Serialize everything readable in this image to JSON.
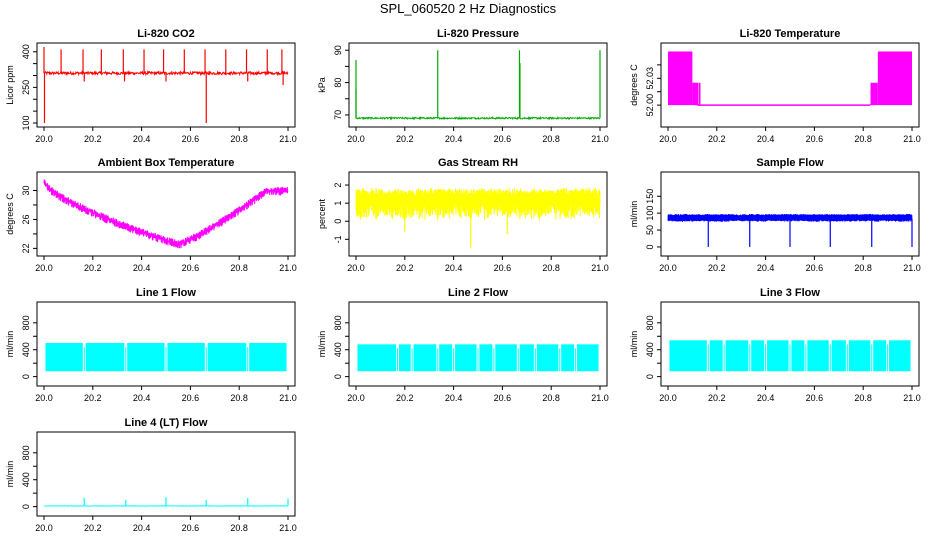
{
  "title": "SPL_060520  2 Hz Diagnostics",
  "chart_data": [
    {
      "type": "line",
      "title": "Li-820 CO2",
      "ylabel": "Licor ppm",
      "color": "#ff0000",
      "xlim": [
        0,
        1
      ],
      "ylim": [
        100,
        420
      ],
      "xticks": [
        0,
        0.2,
        0.4,
        0.6,
        0.8,
        1
      ],
      "xticklabels": [
        "20.0",
        "20.2",
        "20.4",
        "20.6",
        "20.8",
        "21.0"
      ],
      "yticks": [
        100,
        250,
        400
      ],
      "yticklabels": [
        "100",
        "250",
        "400"
      ],
      "yminor": [
        150,
        200,
        300,
        350
      ],
      "baseline": [
        0.0,
        3.0
      ],
      "noise": 6,
      "band": 0,
      "gen": "flat",
      "params": [
        0,
        0,
        0,
        0
      ],
      "spikes": [
        {
          "x": 0.0,
          "y": 420
        },
        {
          "x": 0.002,
          "y": 100
        },
        {
          "x": 0.07,
          "y": 410
        },
        {
          "x": 0.16,
          "y": 410
        },
        {
          "x": 0.235,
          "y": 410
        },
        {
          "x": 0.325,
          "y": 410
        },
        {
          "x": 0.41,
          "y": 410
        },
        {
          "x": 0.49,
          "y": 410
        },
        {
          "x": 0.575,
          "y": 410
        },
        {
          "x": 0.66,
          "y": 410
        },
        {
          "x": 0.665,
          "y": 100
        },
        {
          "x": 0.745,
          "y": 410
        },
        {
          "x": 0.83,
          "y": 410
        },
        {
          "x": 0.915,
          "y": 410
        },
        {
          "x": 0.975,
          "y": 410
        },
        {
          "x": 0.98,
          "y": 260
        },
        {
          "x": 0.33,
          "y": 275
        },
        {
          "x": 0.165,
          "y": 275
        },
        {
          "x": 0.5,
          "y": 275
        },
        {
          "x": 0.835,
          "y": 275
        }
      ],
      "level": 310
    },
    {
      "type": "line",
      "title": "Li-820 Pressure",
      "ylabel": "kPa",
      "color": "#00aa00",
      "xlim": [
        0,
        1
      ],
      "ylim": [
        67.5,
        91
      ],
      "xticks": [
        0,
        0.2,
        0.4,
        0.6,
        0.8,
        1
      ],
      "xticklabels": [
        "20.0",
        "20.2",
        "20.4",
        "20.6",
        "20.8",
        "21.0"
      ],
      "yticks": [
        70,
        80,
        90
      ],
      "yticklabels": [
        "70",
        "80",
        "90"
      ],
      "yminor": [
        75,
        85
      ],
      "level": 69.0,
      "noise": 0.25,
      "band": 0,
      "gen": "flat",
      "spikes": [
        {
          "x": 0.0,
          "y": 87
        },
        {
          "x": 0.0,
          "y": 78
        },
        {
          "x": 0.335,
          "y": 90
        },
        {
          "x": 0.67,
          "y": 90
        },
        {
          "x": 0.672,
          "y": 86
        },
        {
          "x": 1.0,
          "y": 90
        }
      ]
    },
    {
      "type": "area",
      "title": "Li-820 Temperature",
      "ylabel": "degrees C",
      "color": "#ff00ff",
      "xlim": [
        0,
        1
      ],
      "ylim": [
        51.98,
        52.065
      ],
      "xticks": [
        0,
        0.2,
        0.4,
        0.6,
        0.8,
        1
      ],
      "xticklabels": [
        "20.0",
        "20.2",
        "20.4",
        "20.6",
        "20.8",
        "21.0"
      ],
      "yticks": [
        52.0,
        52.03
      ],
      "yticklabels": [
        "52.00",
        "52.03"
      ],
      "yminor": [
        52.015,
        52.045
      ],
      "level": 52.0,
      "gen": "temp",
      "blocks": [
        {
          "x0": 0,
          "x1": 0.1,
          "y0": 52.0,
          "y1": 52.06
        },
        {
          "x0": 0.1,
          "x1": 0.125,
          "y0": 52.0,
          "y1": 52.025
        },
        {
          "x0": 0.83,
          "x1": 0.86,
          "y0": 52.0,
          "y1": 52.025
        },
        {
          "x0": 0.86,
          "x1": 1.0,
          "y0": 52.0,
          "y1": 52.06
        }
      ]
    },
    {
      "type": "line",
      "title": "Ambient Box Temperature",
      "ylabel": "degrees C",
      "color": "#ff00ff",
      "xlim": [
        0,
        1
      ],
      "ylim": [
        21.5,
        32
      ],
      "xticks": [
        0,
        0.2,
        0.4,
        0.6,
        0.8,
        1
      ],
      "xticklabels": [
        "20.0",
        "20.2",
        "20.4",
        "20.6",
        "20.8",
        "21.0"
      ],
      "yticks": [
        22,
        26,
        30
      ],
      "yticklabels": [
        "22",
        "26",
        "30"
      ],
      "yminor": [
        24,
        28
      ],
      "gen": "vshape",
      "band": 1.0
    },
    {
      "type": "line",
      "title": "Gas Stream RH",
      "ylabel": "percent",
      "color": "#ffff00",
      "xlim": [
        0,
        1
      ],
      "ylim": [
        -1.7,
        2.5
      ],
      "xticks": [
        0,
        0.2,
        0.4,
        0.6,
        0.8,
        1
      ],
      "xticklabels": [
        "20.0",
        "20.2",
        "20.4",
        "20.6",
        "20.8",
        "21.0"
      ],
      "yticks": [
        -1,
        0,
        1,
        2
      ],
      "yticklabels": [
        "-1",
        "0",
        "1",
        "2"
      ],
      "gen": "band",
      "params": [
        1.05,
        1.2,
        0.9,
        1.5
      ],
      "dips": [
        {
          "x": 0.47,
          "y": -1.5
        },
        {
          "x": 0.2,
          "y": -0.6
        },
        {
          "x": 0.62,
          "y": -0.7
        }
      ]
    },
    {
      "type": "line",
      "title": "Sample Flow",
      "ylabel": "ml/min",
      "color": "#0000ff",
      "xlim": [
        0,
        1
      ],
      "ylim": [
        -15,
        210
      ],
      "xticks": [
        0,
        0.2,
        0.4,
        0.6,
        0.8,
        1
      ],
      "xticklabels": [
        "20.0",
        "20.2",
        "20.4",
        "20.6",
        "20.8",
        "21.0"
      ],
      "yticks": [
        0,
        50,
        100,
        150
      ],
      "yticklabels": [
        "0",
        "50",
        "100",
        "150"
      ],
      "gen": "band",
      "params": [
        83,
        88,
        78,
        95
      ],
      "dips": [
        {
          "x": 0.165,
          "y": 0
        },
        {
          "x": 0.335,
          "y": 0
        },
        {
          "x": 0.5,
          "y": 0
        },
        {
          "x": 0.665,
          "y": 0
        },
        {
          "x": 0.835,
          "y": 0
        },
        {
          "x": 1.0,
          "y": 0
        }
      ]
    },
    {
      "type": "area",
      "title": "Line 1 Flow",
      "ylabel": "ml/min",
      "color": "#00ffff",
      "xlim": [
        0,
        1
      ],
      "ylim": [
        -80,
        1050
      ],
      "xticks": [
        0,
        0.2,
        0.4,
        0.6,
        0.8,
        1
      ],
      "xticklabels": [
        "20.0",
        "20.2",
        "20.4",
        "20.6",
        "20.8",
        "21.0"
      ],
      "yticks": [
        0,
        400,
        800
      ],
      "yticklabels": [
        "0",
        "400",
        "800"
      ],
      "yminor": [
        200,
        600
      ],
      "gen": "flow",
      "low": 80,
      "high": 500,
      "gaps": [
        0.165,
        0.335,
        0.5,
        0.665,
        0.835
      ]
    },
    {
      "type": "area",
      "title": "Line 2 Flow",
      "ylabel": "ml/min",
      "color": "#00ffff",
      "xlim": [
        0,
        1
      ],
      "ylim": [
        -80,
        1050
      ],
      "xticks": [
        0,
        0.2,
        0.4,
        0.6,
        0.8,
        1
      ],
      "xticklabels": [
        "20.0",
        "20.2",
        "20.4",
        "20.6",
        "20.8",
        "21.0"
      ],
      "yticks": [
        0,
        400,
        800
      ],
      "yticklabels": [
        "0",
        "400",
        "800"
      ],
      "yminor": [
        200,
        600
      ],
      "gen": "flow",
      "low": 80,
      "high": 480,
      "gaps": [
        0.17,
        0.23,
        0.335,
        0.4,
        0.5,
        0.565,
        0.665,
        0.735,
        0.835,
        0.9
      ]
    },
    {
      "type": "area",
      "title": "Line 3 Flow",
      "ylabel": "ml/min",
      "color": "#00ffff",
      "xlim": [
        0,
        1
      ],
      "ylim": [
        -80,
        1050
      ],
      "xticks": [
        0,
        0.2,
        0.4,
        0.6,
        0.8,
        1
      ],
      "xticklabels": [
        "20.0",
        "20.2",
        "20.4",
        "20.6",
        "20.8",
        "21.0"
      ],
      "yticks": [
        0,
        400,
        800
      ],
      "yticklabels": [
        "0",
        "400",
        "800"
      ],
      "yminor": [
        200,
        600
      ],
      "gen": "flow",
      "low": 80,
      "high": 540,
      "gaps": [
        0.165,
        0.23,
        0.335,
        0.4,
        0.5,
        0.565,
        0.665,
        0.735,
        0.835,
        0.9
      ]
    },
    {
      "type": "line",
      "title": "Line 4 (LT) Flow",
      "ylabel": "ml/min",
      "color": "#00ffff",
      "xlim": [
        0,
        1
      ],
      "ylim": [
        -80,
        1050
      ],
      "xticks": [
        0,
        0.2,
        0.4,
        0.6,
        0.8,
        1
      ],
      "xticklabels": [
        "20.0",
        "20.2",
        "20.4",
        "20.6",
        "20.8",
        "21.0"
      ],
      "yticks": [
        0,
        400,
        800
      ],
      "yticklabels": [
        "0",
        "400",
        "800"
      ],
      "yminor": [
        200,
        600
      ],
      "gen": "flat",
      "level": 10,
      "noise": 3,
      "spikes": [
        {
          "x": 0.165,
          "y": 130
        },
        {
          "x": 0.335,
          "y": 100
        },
        {
          "x": 0.5,
          "y": 140
        },
        {
          "x": 0.665,
          "y": 100
        },
        {
          "x": 0.835,
          "y": 130
        },
        {
          "x": 1.0,
          "y": 120
        }
      ]
    }
  ]
}
